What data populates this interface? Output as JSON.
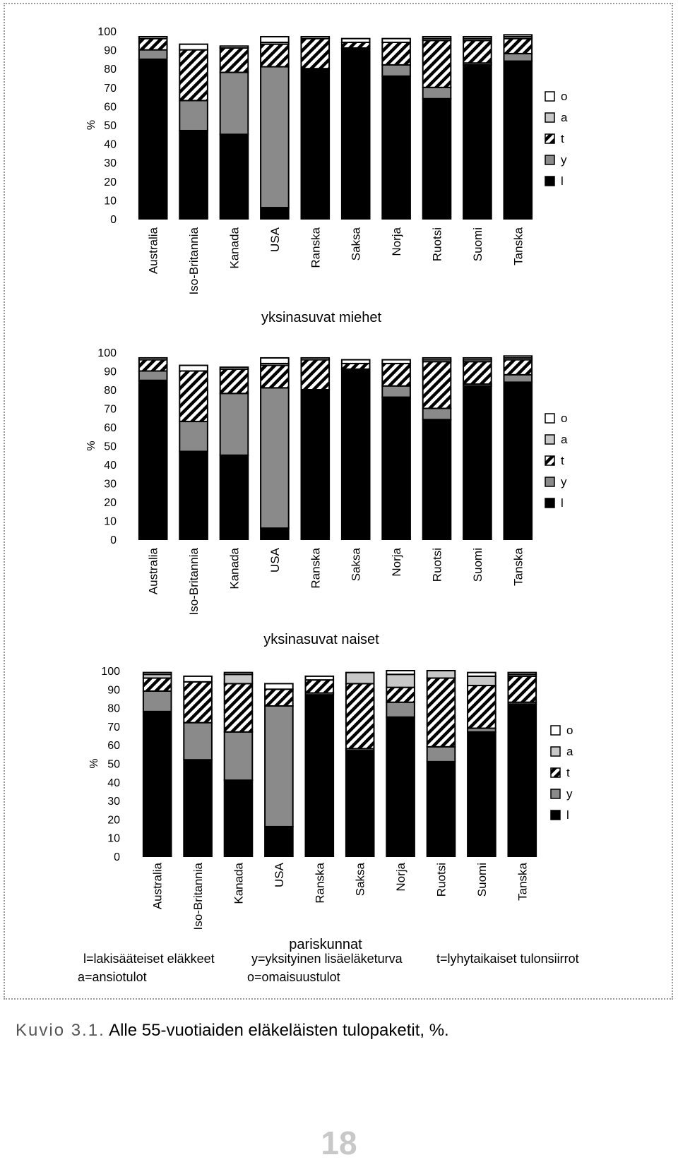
{
  "categories": [
    "Australia",
    "Iso-Britannia",
    "Kanada",
    "USA",
    "Ranska",
    "Saksa",
    "Norja",
    "Ruotsi",
    "Suomi",
    "Tanska"
  ],
  "y_ticks": [
    "0",
    "10",
    "20",
    "30",
    "40",
    "50",
    "60",
    "70",
    "80",
    "90",
    "100"
  ],
  "y_unit": "%",
  "legend": [
    {
      "key": "o",
      "color": "#ffffff"
    },
    {
      "key": "a",
      "color": "#c8c8c8"
    },
    {
      "key": "t",
      "color": "hatch"
    },
    {
      "key": "y",
      "color": "#8a8a8a"
    },
    {
      "key": "l",
      "color": "#000000"
    }
  ],
  "chart_data": [
    {
      "type": "bar",
      "stacked": true,
      "title": "yksinasuvat miehet",
      "ylabel": "%",
      "ylim": [
        0,
        100
      ],
      "categories": [
        "Australia",
        "Iso-Britannia",
        "Kanada",
        "USA",
        "Ranska",
        "Saksa",
        "Norja",
        "Ruotsi",
        "Suomi",
        "Tanska"
      ],
      "series": [
        {
          "name": "l",
          "values": [
            85,
            47,
            45,
            6,
            80,
            91,
            76,
            64,
            82,
            84
          ]
        },
        {
          "name": "y",
          "values": [
            5,
            16,
            33,
            75,
            0,
            0,
            6,
            6,
            1,
            4
          ]
        },
        {
          "name": "t",
          "values": [
            6,
            27,
            13,
            12,
            16,
            3,
            12,
            25,
            12,
            8
          ]
        },
        {
          "name": "a",
          "values": [
            0,
            0,
            0,
            1,
            0,
            0,
            0,
            1,
            1,
            1
          ]
        },
        {
          "name": "o",
          "values": [
            1,
            3,
            1,
            3,
            1,
            2,
            2,
            1,
            1,
            1
          ]
        }
      ]
    },
    {
      "type": "bar",
      "stacked": true,
      "title": "yksinasuvat naiset",
      "ylabel": "%",
      "ylim": [
        0,
        100
      ],
      "categories": [
        "Australia",
        "Iso-Britannia",
        "Kanada",
        "USA",
        "Ranska",
        "Saksa",
        "Norja",
        "Ruotsi",
        "Suomi",
        "Tanska"
      ],
      "series": [
        {
          "name": "l",
          "values": [
            85,
            47,
            45,
            6,
            80,
            91,
            76,
            64,
            82,
            84
          ]
        },
        {
          "name": "y",
          "values": [
            5,
            16,
            33,
            75,
            0,
            0,
            6,
            6,
            1,
            4
          ]
        },
        {
          "name": "t",
          "values": [
            6,
            27,
            13,
            12,
            16,
            3,
            12,
            25,
            12,
            8
          ]
        },
        {
          "name": "a",
          "values": [
            0,
            0,
            0,
            1,
            0,
            0,
            0,
            1,
            1,
            1
          ]
        },
        {
          "name": "o",
          "values": [
            1,
            3,
            1,
            3,
            1,
            2,
            2,
            1,
            1,
            1
          ]
        }
      ]
    },
    {
      "type": "bar",
      "stacked": true,
      "title": "pariskunnat",
      "ylabel": "%",
      "ylim": [
        0,
        100
      ],
      "categories": [
        "Australia",
        "Iso-Britannia",
        "Kanada",
        "USA",
        "Ranska",
        "Saksa",
        "Norja",
        "Ruotsi",
        "Suomi",
        "Tanska"
      ],
      "series": [
        {
          "name": "l",
          "values": [
            78,
            52,
            41,
            16,
            87,
            57,
            75,
            51,
            67,
            82
          ]
        },
        {
          "name": "y",
          "values": [
            11,
            20,
            26,
            65,
            1,
            1,
            8,
            8,
            2,
            1
          ]
        },
        {
          "name": "t",
          "values": [
            7,
            22,
            26,
            9,
            7,
            35,
            8,
            37,
            23,
            14
          ]
        },
        {
          "name": "a",
          "values": [
            2,
            0,
            5,
            0,
            0,
            6,
            7,
            4,
            5,
            1
          ]
        },
        {
          "name": "o",
          "values": [
            1,
            3,
            1,
            3,
            2,
            0,
            2,
            0,
            2,
            1
          ]
        }
      ]
    }
  ],
  "notes": {
    "l": "l=lakisääteiset eläkkeet",
    "y": "y=yksityinen lisäeläketurva",
    "t": "t=lyhytaikaiset tulonsiirrot",
    "a": "a=ansiotulot",
    "o": "o=omaisuustulot"
  },
  "caption": {
    "label": "Kuvio 3.1.",
    "text": "Alle 55-vuotiaiden eläkeläisten tulopaketit, %."
  },
  "page_number": "18"
}
